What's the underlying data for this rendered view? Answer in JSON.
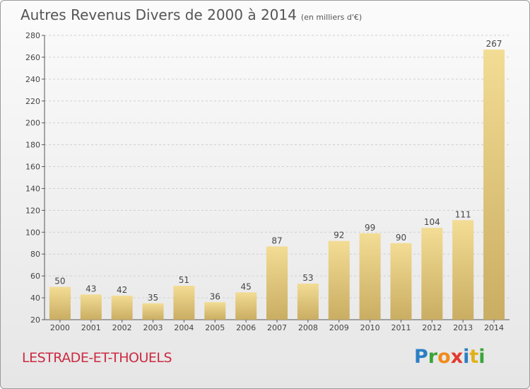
{
  "title": "Autres Revenus Divers de 2000 à 2014",
  "subtitle": "(en milliers d'€)",
  "place": "LESTRADE-ET-THOUELS",
  "logo": {
    "letters": [
      "P",
      "r",
      "o",
      "x",
      "i",
      "t",
      "i"
    ]
  },
  "colors": {
    "bar_light": "#f3dc94",
    "bar_dark": "#c9ad62",
    "grid": "#cfcfcf",
    "place": "#cc2b43"
  },
  "chart_data": {
    "type": "bar",
    "categories": [
      "2000",
      "2001",
      "2002",
      "2003",
      "2004",
      "2005",
      "2006",
      "2007",
      "2008",
      "2009",
      "2010",
      "2011",
      "2012",
      "2013",
      "2014"
    ],
    "values": [
      50,
      43,
      42,
      35,
      51,
      36,
      45,
      87,
      53,
      92,
      99,
      90,
      104,
      111,
      267
    ],
    "ylim": [
      20,
      280
    ],
    "yticks": [
      20,
      40,
      60,
      80,
      100,
      120,
      140,
      160,
      180,
      200,
      220,
      240,
      260,
      280
    ],
    "grid": true,
    "title": "Autres Revenus Divers de 2000 à 2014",
    "xlabel": "",
    "ylabel": ""
  }
}
